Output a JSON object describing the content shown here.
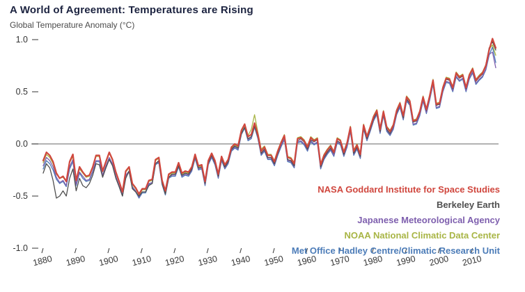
{
  "header": {
    "title": "A World of Agreement: Temperatures are Rising",
    "subtitle": "Global Temperature Anomaly (°C)"
  },
  "colors": {
    "background": "#ffffff",
    "title_text": "#1c2340",
    "axis_text": "#333333",
    "zero_line": "#848484"
  },
  "chart_data": {
    "type": "line",
    "title": "A World of Agreement: Temperatures are Rising",
    "ylabel": "Global Temperature Anomaly (°C)",
    "xlabel": "",
    "x_start_year": 1880,
    "x_end_year": 2017,
    "xticks": [
      1880,
      1890,
      1900,
      1910,
      1920,
      1930,
      1940,
      1950,
      1960,
      1970,
      1980,
      1990,
      2000,
      2010
    ],
    "yticks": [
      1.0,
      0.5,
      0.0,
      -0.5,
      -1.0
    ],
    "ytick_labels": [
      "1.0",
      "0.5",
      "0.0",
      "-0.5",
      "-1.0"
    ],
    "ylim": [
      -1.1,
      1.1
    ],
    "grid": false,
    "zero_line": true,
    "legend_position": "bottom-right",
    "series": [
      {
        "name": "NASA Goddard Institute for Space Studies",
        "color": "#d0473e",
        "values": [
          -0.16,
          -0.08,
          -0.11,
          -0.17,
          -0.28,
          -0.33,
          -0.31,
          -0.36,
          -0.17,
          -0.1,
          -0.35,
          -0.22,
          -0.27,
          -0.31,
          -0.3,
          -0.22,
          -0.11,
          -0.11,
          -0.26,
          -0.17,
          -0.08,
          -0.15,
          -0.27,
          -0.36,
          -0.46,
          -0.26,
          -0.22,
          -0.38,
          -0.42,
          -0.48,
          -0.43,
          -0.43,
          -0.35,
          -0.34,
          -0.15,
          -0.13,
          -0.35,
          -0.45,
          -0.29,
          -0.27,
          -0.27,
          -0.18,
          -0.28,
          -0.26,
          -0.27,
          -0.22,
          -0.1,
          -0.21,
          -0.2,
          -0.36,
          -0.16,
          -0.09,
          -0.16,
          -0.29,
          -0.12,
          -0.2,
          -0.15,
          -0.03,
          0.0,
          -0.02,
          0.13,
          0.19,
          0.07,
          0.09,
          0.2,
          0.09,
          -0.07,
          -0.03,
          -0.11,
          -0.11,
          -0.17,
          -0.07,
          0.01,
          0.08,
          -0.13,
          -0.14,
          -0.19,
          0.05,
          0.06,
          0.03,
          -0.03,
          0.06,
          0.03,
          0.05,
          -0.2,
          -0.11,
          -0.06,
          -0.02,
          -0.08,
          0.05,
          0.03,
          -0.08,
          0.01,
          0.16,
          -0.07,
          -0.01,
          -0.1,
          0.18,
          0.07,
          0.16,
          0.26,
          0.32,
          0.14,
          0.31,
          0.16,
          0.12,
          0.18,
          0.32,
          0.39,
          0.27,
          0.45,
          0.41,
          0.22,
          0.23,
          0.31,
          0.45,
          0.33,
          0.46,
          0.61,
          0.38,
          0.39,
          0.54,
          0.63,
          0.62,
          0.54,
          0.68,
          0.64,
          0.66,
          0.54,
          0.66,
          0.72,
          0.61,
          0.65,
          0.68,
          0.75,
          0.9,
          1.01,
          0.92
        ]
      },
      {
        "name": "Berkeley Earth",
        "color": "#4f4f4f",
        "values": [
          -0.28,
          -0.19,
          -0.23,
          -0.35,
          -0.52,
          -0.5,
          -0.45,
          -0.5,
          -0.33,
          -0.24,
          -0.45,
          -0.33,
          -0.4,
          -0.42,
          -0.38,
          -0.3,
          -0.19,
          -0.2,
          -0.32,
          -0.23,
          -0.15,
          -0.21,
          -0.33,
          -0.41,
          -0.5,
          -0.33,
          -0.26,
          -0.43,
          -0.46,
          -0.5,
          -0.46,
          -0.46,
          -0.4,
          -0.38,
          -0.19,
          -0.16,
          -0.38,
          -0.48,
          -0.32,
          -0.29,
          -0.29,
          -0.21,
          -0.3,
          -0.28,
          -0.29,
          -0.24,
          -0.12,
          -0.23,
          -0.22,
          -0.38,
          -0.18,
          -0.11,
          -0.18,
          -0.31,
          -0.14,
          -0.22,
          -0.17,
          -0.05,
          -0.02,
          -0.04,
          0.1,
          0.16,
          0.05,
          0.07,
          0.17,
          0.07,
          -0.09,
          -0.05,
          -0.13,
          -0.13,
          -0.19,
          -0.09,
          0.0,
          0.07,
          -0.15,
          -0.16,
          -0.21,
          0.03,
          0.05,
          0.02,
          -0.05,
          0.04,
          0.02,
          0.04,
          -0.22,
          -0.13,
          -0.08,
          -0.04,
          -0.09,
          0.03,
          0.01,
          -0.1,
          0.0,
          0.15,
          -0.09,
          -0.03,
          -0.12,
          0.16,
          0.05,
          0.14,
          0.24,
          0.3,
          0.12,
          0.29,
          0.14,
          0.1,
          0.17,
          0.3,
          0.38,
          0.25,
          0.43,
          0.39,
          0.21,
          0.22,
          0.3,
          0.44,
          0.32,
          0.45,
          0.6,
          0.37,
          0.38,
          0.53,
          0.62,
          0.61,
          0.53,
          0.67,
          0.63,
          0.65,
          0.53,
          0.65,
          0.71,
          0.6,
          0.64,
          0.67,
          0.76,
          0.92,
          0.98,
          0.9
        ]
      },
      {
        "name": "Japanese Meteorological Agency",
        "color": "#7e5fae",
        "values": [
          -0.21,
          -0.13,
          -0.16,
          -0.22,
          -0.32,
          -0.37,
          -0.35,
          -0.4,
          -0.22,
          -0.15,
          -0.39,
          -0.27,
          -0.31,
          -0.35,
          -0.34,
          -0.26,
          -0.16,
          -0.16,
          -0.3,
          -0.21,
          -0.13,
          -0.19,
          -0.31,
          -0.4,
          -0.49,
          -0.3,
          -0.26,
          -0.41,
          -0.45,
          -0.51,
          -0.46,
          -0.46,
          -0.38,
          -0.37,
          -0.19,
          -0.17,
          -0.38,
          -0.48,
          -0.32,
          -0.3,
          -0.3,
          -0.21,
          -0.31,
          -0.29,
          -0.3,
          -0.25,
          -0.13,
          -0.24,
          -0.23,
          -0.39,
          -0.19,
          -0.12,
          -0.19,
          -0.32,
          -0.15,
          -0.23,
          -0.18,
          -0.06,
          -0.03,
          -0.05,
          0.1,
          0.16,
          0.04,
          0.06,
          0.17,
          0.06,
          -0.1,
          -0.06,
          -0.14,
          -0.14,
          -0.2,
          -0.1,
          -0.02,
          0.05,
          -0.16,
          -0.17,
          -0.22,
          0.02,
          0.03,
          0.0,
          -0.06,
          0.03,
          0.0,
          0.02,
          -0.23,
          -0.14,
          -0.09,
          -0.05,
          -0.11,
          0.02,
          0.0,
          -0.11,
          -0.02,
          0.13,
          -0.1,
          -0.04,
          -0.13,
          0.15,
          0.04,
          0.13,
          0.23,
          0.29,
          0.11,
          0.28,
          0.13,
          0.09,
          0.15,
          0.29,
          0.36,
          0.24,
          0.42,
          0.38,
          0.19,
          0.2,
          0.28,
          0.42,
          0.3,
          0.43,
          0.58,
          0.35,
          0.36,
          0.51,
          0.6,
          0.59,
          0.51,
          0.65,
          0.61,
          0.63,
          0.51,
          0.63,
          0.69,
          0.58,
          0.62,
          0.65,
          0.72,
          0.86,
          0.88,
          0.73
        ]
      },
      {
        "name": "NOAA National Climatic Data Center",
        "color": "#a8b545",
        "values": [
          -0.18,
          -0.1,
          -0.13,
          -0.19,
          -0.29,
          -0.33,
          -0.32,
          -0.36,
          -0.18,
          -0.12,
          -0.36,
          -0.24,
          -0.28,
          -0.32,
          -0.31,
          -0.23,
          -0.12,
          -0.12,
          -0.27,
          -0.18,
          -0.09,
          -0.16,
          -0.28,
          -0.37,
          -0.46,
          -0.27,
          -0.23,
          -0.39,
          -0.43,
          -0.49,
          -0.44,
          -0.44,
          -0.36,
          -0.35,
          -0.16,
          -0.14,
          -0.36,
          -0.46,
          -0.3,
          -0.28,
          -0.28,
          -0.19,
          -0.29,
          -0.27,
          -0.28,
          -0.23,
          -0.11,
          -0.22,
          -0.21,
          -0.37,
          -0.17,
          -0.1,
          -0.17,
          -0.3,
          -0.13,
          -0.21,
          -0.16,
          -0.04,
          -0.01,
          -0.03,
          0.12,
          0.18,
          0.08,
          0.14,
          0.28,
          0.11,
          -0.05,
          -0.02,
          -0.1,
          -0.1,
          -0.16,
          -0.06,
          0.02,
          0.09,
          -0.12,
          -0.13,
          -0.18,
          0.06,
          0.07,
          0.04,
          -0.02,
          0.07,
          0.04,
          0.06,
          -0.19,
          -0.1,
          -0.05,
          -0.01,
          -0.07,
          0.06,
          0.04,
          -0.07,
          0.02,
          0.17,
          -0.06,
          0.0,
          -0.09,
          0.19,
          0.08,
          0.17,
          0.27,
          0.33,
          0.15,
          0.32,
          0.17,
          0.13,
          0.19,
          0.33,
          0.4,
          0.28,
          0.46,
          0.42,
          0.23,
          0.24,
          0.32,
          0.46,
          0.34,
          0.47,
          0.62,
          0.39,
          0.4,
          0.55,
          0.64,
          0.63,
          0.55,
          0.69,
          0.65,
          0.67,
          0.55,
          0.67,
          0.73,
          0.62,
          0.66,
          0.69,
          0.76,
          0.91,
          0.95,
          0.85
        ]
      },
      {
        "name": "Met Office Hadley Centre/Climatic Research Unit",
        "color": "#4c7cb8",
        "values": [
          -0.24,
          -0.16,
          -0.19,
          -0.25,
          -0.34,
          -0.38,
          -0.36,
          -0.41,
          -0.24,
          -0.17,
          -0.4,
          -0.28,
          -0.33,
          -0.36,
          -0.35,
          -0.27,
          -0.17,
          -0.17,
          -0.31,
          -0.22,
          -0.14,
          -0.2,
          -0.32,
          -0.41,
          -0.5,
          -0.31,
          -0.27,
          -0.42,
          -0.46,
          -0.52,
          -0.47,
          -0.47,
          -0.39,
          -0.38,
          -0.2,
          -0.18,
          -0.39,
          -0.49,
          -0.33,
          -0.31,
          -0.31,
          -0.22,
          -0.32,
          -0.3,
          -0.31,
          -0.26,
          -0.14,
          -0.25,
          -0.24,
          -0.4,
          -0.2,
          -0.13,
          -0.2,
          -0.33,
          -0.16,
          -0.24,
          -0.19,
          -0.07,
          -0.04,
          -0.06,
          0.09,
          0.15,
          0.03,
          0.05,
          0.16,
          0.05,
          -0.11,
          -0.07,
          -0.15,
          -0.15,
          -0.21,
          -0.11,
          -0.03,
          0.04,
          -0.17,
          -0.18,
          -0.23,
          0.01,
          0.02,
          -0.01,
          -0.07,
          0.02,
          -0.01,
          0.01,
          -0.24,
          -0.15,
          -0.1,
          -0.06,
          -0.12,
          0.01,
          -0.01,
          -0.12,
          -0.03,
          0.12,
          -0.11,
          -0.05,
          -0.14,
          0.14,
          0.03,
          0.12,
          0.22,
          0.28,
          0.1,
          0.27,
          0.12,
          0.08,
          0.14,
          0.28,
          0.35,
          0.23,
          0.41,
          0.37,
          0.18,
          0.19,
          0.27,
          0.41,
          0.29,
          0.42,
          0.57,
          0.34,
          0.35,
          0.5,
          0.59,
          0.58,
          0.5,
          0.64,
          0.6,
          0.62,
          0.5,
          0.62,
          0.68,
          0.57,
          0.61,
          0.64,
          0.71,
          0.85,
          0.93,
          0.78
        ]
      }
    ]
  }
}
